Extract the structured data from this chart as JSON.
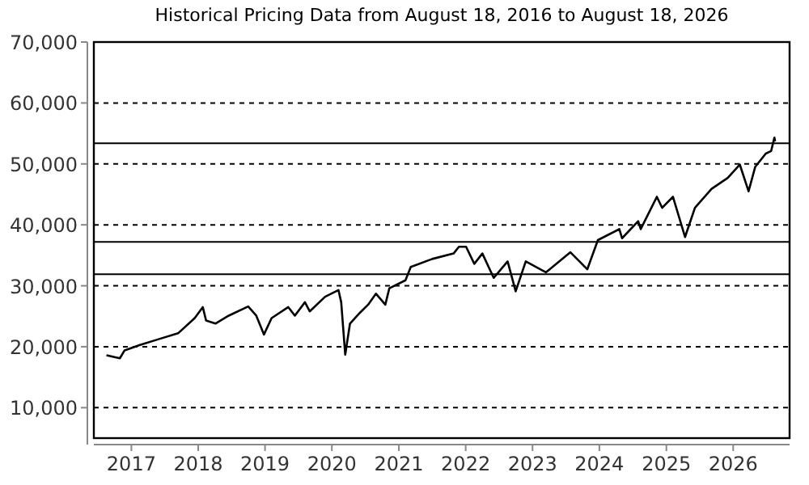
{
  "chart_data": {
    "type": "line",
    "title": "Historical Pricing Data from August 18, 2016 to August 18, 2026",
    "x": [
      "2016-08-18",
      "2016-10-30",
      "2016-11-25",
      "2017-02-17",
      "2017-05-26",
      "2017-09-13",
      "2017-12-13",
      "2018-01-26",
      "2018-02-13",
      "2018-04-05",
      "2018-06-17",
      "2018-10-01",
      "2018-11-14",
      "2018-12-26",
      "2019-02-06",
      "2019-05-08",
      "2019-06-13",
      "2019-08-07",
      "2019-09-02",
      "2019-11-25",
      "2020-02-06",
      "2020-02-21",
      "2020-03-14",
      "2020-04-09",
      "2020-06-03",
      "2020-07-17",
      "2020-08-29",
      "2020-10-19",
      "2020-11-10",
      "2021-02-06",
      "2021-03-07",
      "2021-07-02",
      "2021-10-27",
      "2021-11-25",
      "2022-01-03",
      "2022-02-17",
      "2022-04-02",
      "2022-06-03",
      "2022-08-18",
      "2022-10-01",
      "2022-11-25",
      "2023-03-15",
      "2023-07-27",
      "2023-10-27",
      "2023-12-24",
      "2024-04-19",
      "2024-05-04",
      "2024-07-31",
      "2024-08-14",
      "2024-11-10",
      "2024-12-09",
      "2025-02-06",
      "2025-04-13",
      "2025-06-06",
      "2025-09-05",
      "2025-12-02",
      "2026-02-06",
      "2026-03-26",
      "2026-05-01",
      "2026-06-28",
      "2026-07-27",
      "2026-08-14",
      "2026-08-18"
    ],
    "series": [
      {
        "color": "#000000",
        "values": [
          18600,
          18100,
          19400,
          20300,
          21200,
          22200,
          24700,
          26500,
          24300,
          23800,
          25100,
          26600,
          25100,
          22000,
          24700,
          26500,
          25100,
          27300,
          25800,
          28200,
          29300,
          27300,
          18700,
          23800,
          25600,
          26900,
          28700,
          26900,
          29600,
          30900,
          33100,
          34400,
          35300,
          36400,
          36400,
          33600,
          35300,
          31300,
          34000,
          29100,
          34000,
          32200,
          35500,
          32700,
          37500,
          39300,
          37800,
          40600,
          39300,
          44600,
          42800,
          44600,
          38000,
          42800,
          45900,
          47700,
          49900,
          45500,
          49500,
          51700,
          52100,
          54300,
          53700
        ]
      }
    ],
    "xlim": [
      "2016-06-10",
      "2026-11-05"
    ],
    "xticks": [
      {
        "value": "2017-01-01",
        "label": "2017"
      },
      {
        "value": "2018-01-01",
        "label": "2018"
      },
      {
        "value": "2019-01-01",
        "label": "2019"
      },
      {
        "value": "2020-01-01",
        "label": "2020"
      },
      {
        "value": "2021-01-01",
        "label": "2021"
      },
      {
        "value": "2022-01-01",
        "label": "2022"
      },
      {
        "value": "2023-01-01",
        "label": "2023"
      },
      {
        "value": "2024-01-01",
        "label": "2024"
      },
      {
        "value": "2025-01-01",
        "label": "2025"
      },
      {
        "value": "2026-01-01",
        "label": "2026"
      }
    ],
    "ylim": [
      5000,
      70000
    ],
    "yticks": [
      {
        "value": 10000,
        "label": "10,000"
      },
      {
        "value": 20000,
        "label": "20,000"
      },
      {
        "value": 30000,
        "label": "30,000"
      },
      {
        "value": 40000,
        "label": "40,000"
      },
      {
        "value": 50000,
        "label": "50,000"
      },
      {
        "value": 60000,
        "label": "60,000"
      },
      {
        "value": 70000,
        "label": "70,000"
      }
    ],
    "ref_lines": [
      {
        "axis": "y",
        "value": 53400,
        "color": "#000000"
      },
      {
        "axis": "y",
        "value": 37200,
        "color": "#000000"
      },
      {
        "axis": "y",
        "value": 31900,
        "color": "#000000"
      }
    ],
    "grid": "y",
    "line_style": "solid",
    "marker": "none"
  }
}
